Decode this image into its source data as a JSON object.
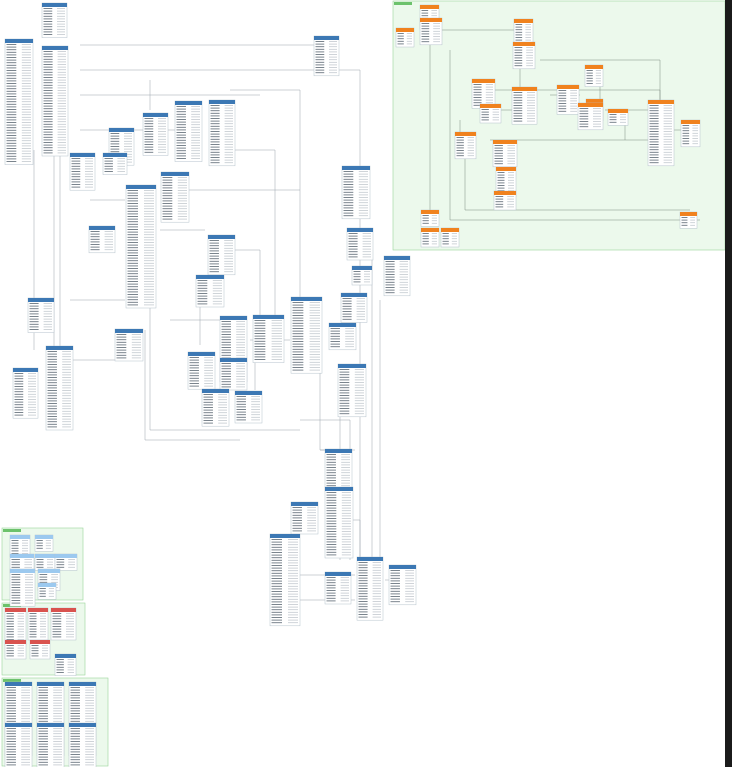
{
  "diagram": {
    "accent_colors": {
      "table_header_blue": "#3c78b4",
      "table_header_orange": "#f0821e",
      "table_header_red": "#d9534f",
      "table_header_lightblue": "#9cc9ef",
      "group_fill": "#ecf9ec",
      "group_border": "#9ad59a",
      "group_label_fill": "#6cc26c",
      "connector": "#9aa4ad"
    },
    "groups": [
      {
        "id": "g1",
        "label": ""
      },
      {
        "id": "g2",
        "label": ""
      },
      {
        "id": "g3",
        "label": ""
      },
      {
        "id": "g4",
        "label": ""
      }
    ]
  }
}
